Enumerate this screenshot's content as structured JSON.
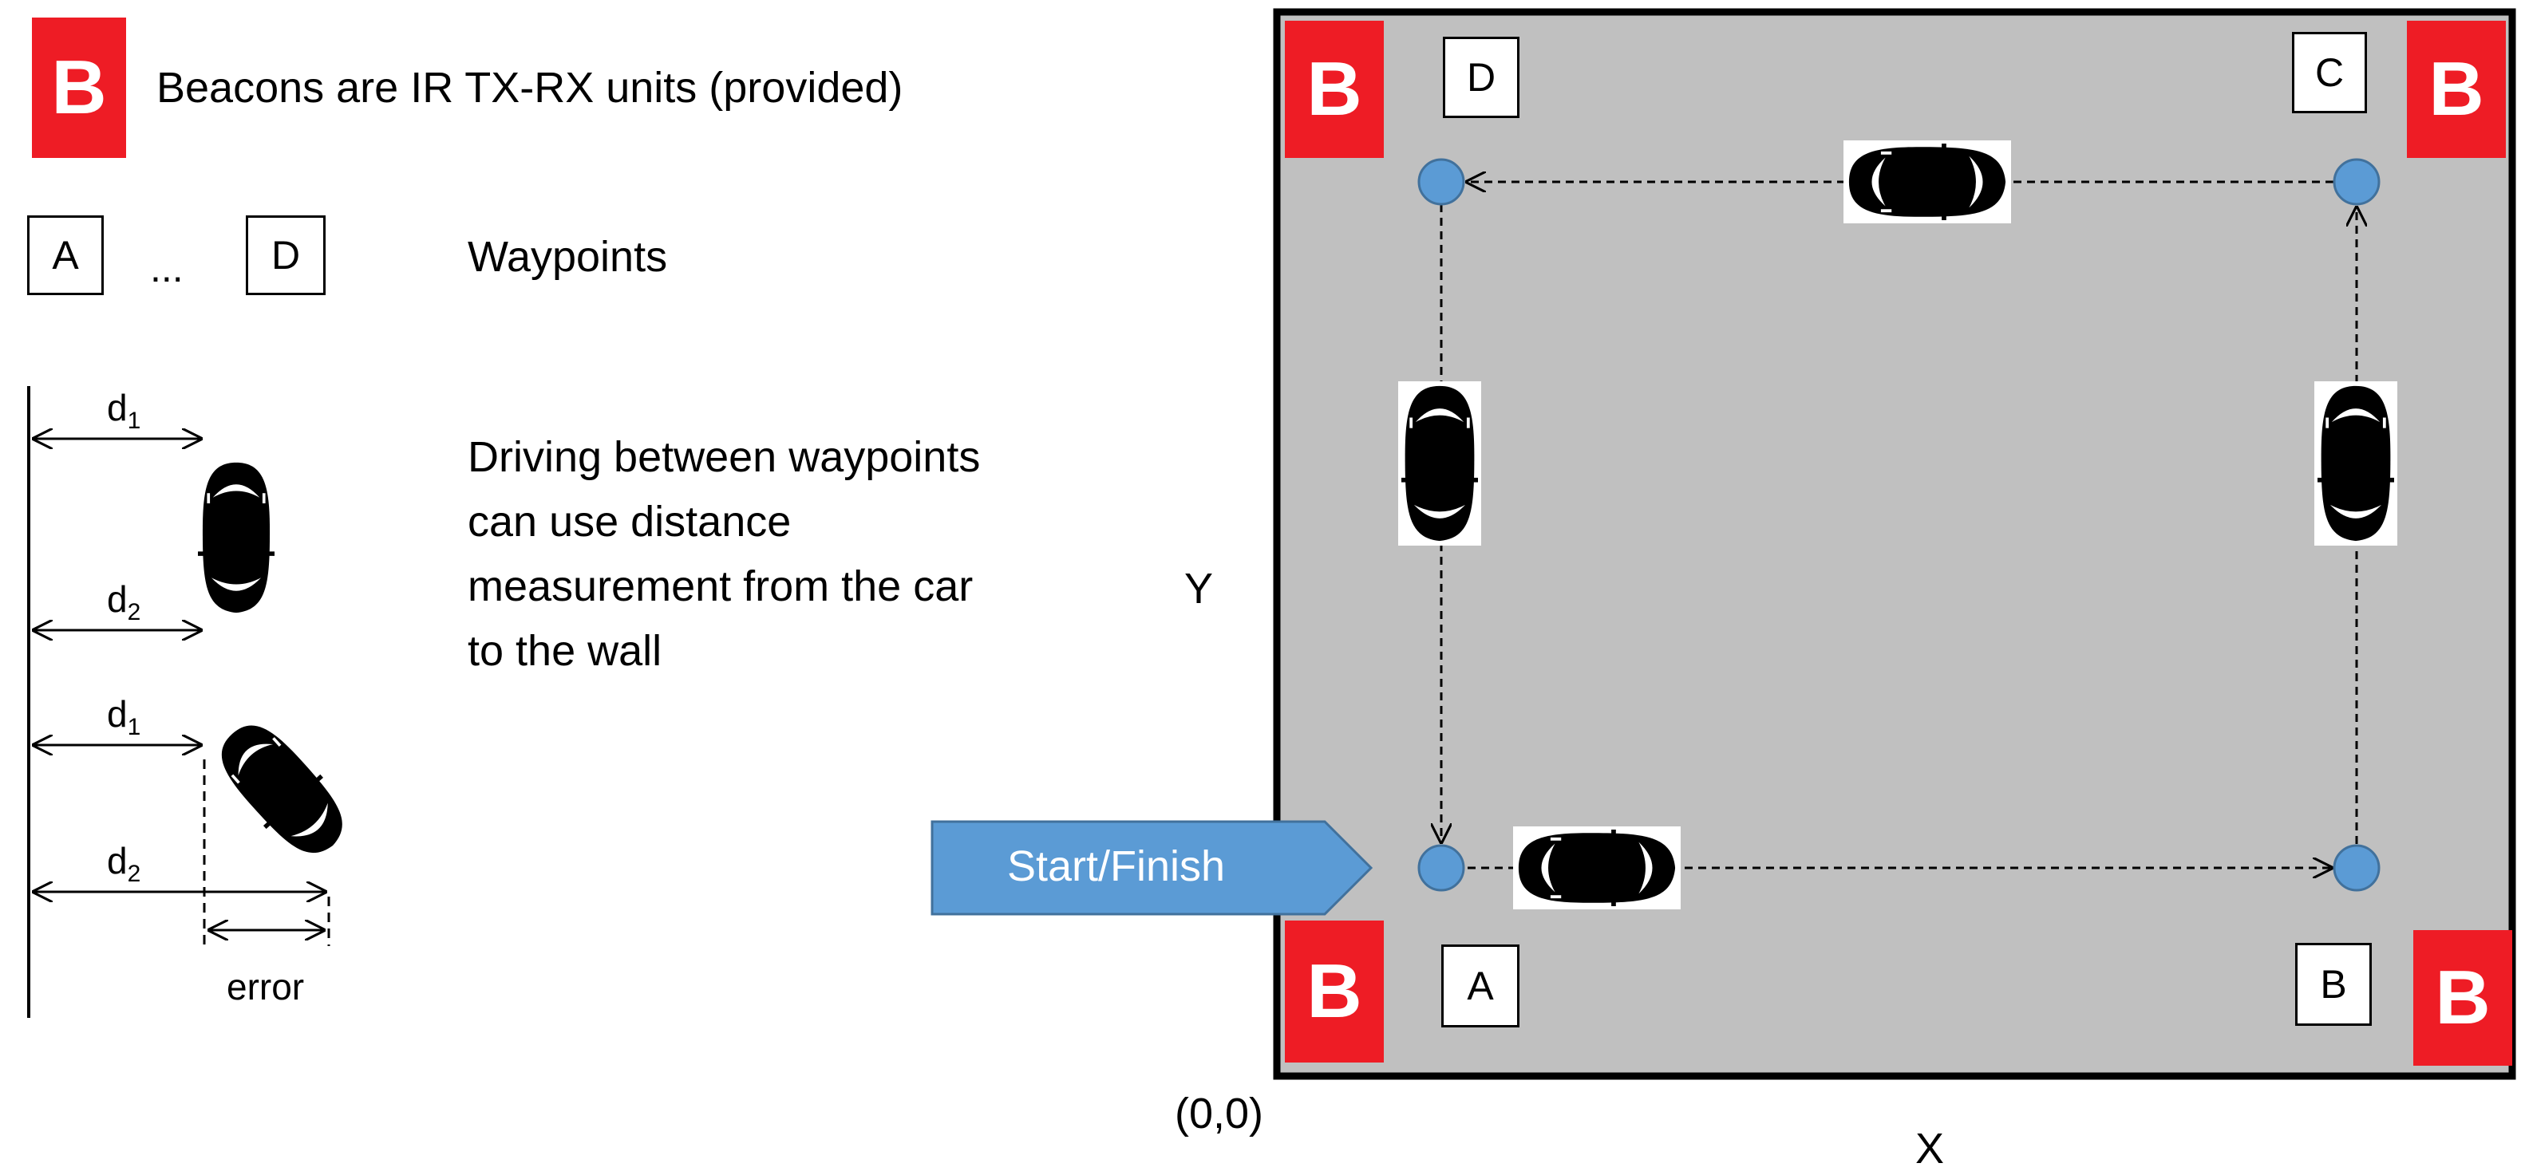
{
  "legend": {
    "beacon_letter": "B",
    "beacon_text": "Beacons are IR TX-RX units (provided)",
    "waypoint_first": "A",
    "waypoint_ellipsis": "...",
    "waypoint_last": "D",
    "waypoint_text": "Waypoints",
    "distance_text": "Driving between waypoints can use distance measurement from the car to the wall",
    "d1_base": "d",
    "d1_sub": "1",
    "d2_base": "d",
    "d2_sub": "2",
    "error_label": "error"
  },
  "arena": {
    "beacon_letter": "B",
    "waypoints": {
      "A": "A",
      "B": "B",
      "C": "C",
      "D": "D"
    },
    "start_finish": "Start/Finish",
    "origin_label": "(0,0)",
    "y_axis_label": "Y",
    "x_axis_label": "X"
  },
  "colors": {
    "beacon_red": "#ee1c25",
    "arena_gray": "#c0c0c0",
    "waypoint_dot": "#5b9bd5",
    "arrow_blue": "#5b9bd5"
  },
  "icons": {
    "beacon": "beacon-icon",
    "car": "car-icon",
    "start_arrow": "arrow-right-icon"
  }
}
